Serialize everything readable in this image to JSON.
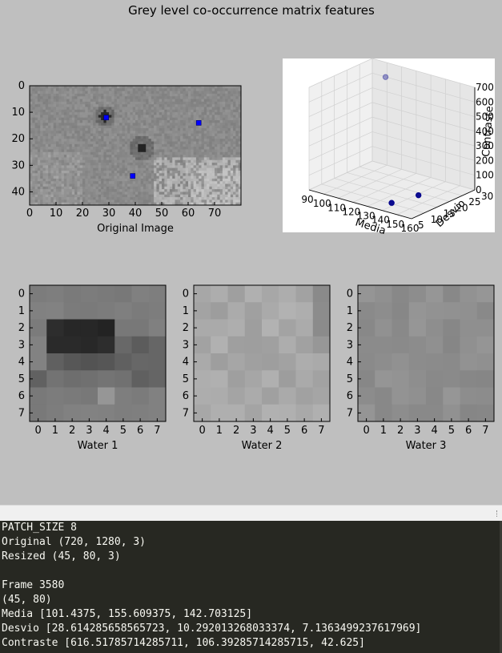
{
  "figure": {
    "title": "Grey level co-occurrence matrix features",
    "original": {
      "xlabel": "Original Image",
      "xticks": [
        "0",
        "10",
        "20",
        "30",
        "40",
        "50",
        "60",
        "70"
      ],
      "yticks": [
        "0",
        "10",
        "20",
        "30",
        "40"
      ],
      "rows": 45,
      "cols": 80,
      "markers": [
        {
          "x": 29,
          "y": 12
        },
        {
          "x": 64,
          "y": 14
        },
        {
          "x": 39,
          "y": 34
        }
      ],
      "marker_color": "#0000ff"
    },
    "plot3d": {
      "xlabel": "Media",
      "ylabel": "Desvio",
      "zlabel": "Contraste",
      "xticks": [
        "90",
        "100",
        "110",
        "120",
        "130",
        "140",
        "150",
        "160"
      ],
      "yticks": [
        "5",
        "10",
        "15",
        "20",
        "25",
        "30"
      ],
      "zticks": [
        "0",
        "100",
        "200",
        "300",
        "400",
        "500",
        "600",
        "700"
      ],
      "point_color": "#00008b"
    },
    "patches": [
      {
        "label": "Water 1"
      },
      {
        "label": "Water 2"
      },
      {
        "label": "Water 3"
      }
    ],
    "patch_ticks": [
      "0",
      "1",
      "2",
      "3",
      "4",
      "5",
      "6",
      "7"
    ]
  },
  "chart_data": {
    "type": "scatter",
    "title": "",
    "xlabel": "Media",
    "ylabel": "Desvio",
    "zlabel": "Contraste",
    "xlim": [
      90,
      160
    ],
    "ylim": [
      5,
      30
    ],
    "zlim": [
      0,
      700
    ],
    "points": [
      {
        "x": 101.4375,
        "y": 28.614285658565723,
        "z": 616.5178571428571
      },
      {
        "x": 155.609375,
        "y": 10.292013268033374,
        "z": 106.39285714285715
      },
      {
        "x": 142.703125,
        "y": 7.136349923761797,
        "z": 42.625
      }
    ]
  },
  "console": {
    "lines": [
      "PATCH_SIZE 8",
      "Original (720, 1280, 3)",
      "Resized (45, 80, 3)",
      "",
      "Frame 3580",
      "(45, 80)",
      "Media [101.4375, 155.609375, 142.703125]",
      "Desvio [28.614285658565723, 10.292013268033374, 7.1363499237617969]",
      "Contraste [616.51785714285711, 106.39285714285715, 42.625]"
    ]
  }
}
